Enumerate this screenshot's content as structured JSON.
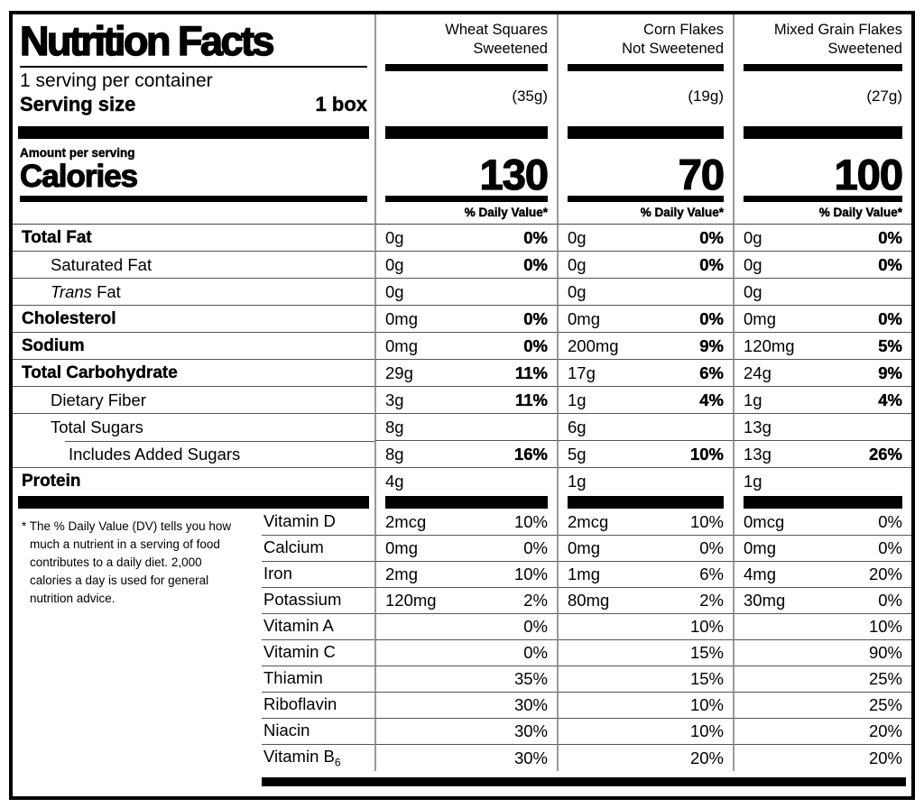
{
  "title": "Nutrition Facts",
  "serving_info": {
    "servings_per_container": "1 serving per container",
    "serving_size_label": "Serving size",
    "serving_size_value": "1 box"
  },
  "calories_section": {
    "amount_label": "Amount per serving",
    "calories_label": "Calories",
    "dv_header": "% Daily Value*"
  },
  "columns": [
    {
      "name_line1": "Wheat Squares",
      "name_line2": "Sweetened",
      "weight": "(35g)",
      "calories": "130"
    },
    {
      "name_line1": "Corn Flakes",
      "name_line2": "Not Sweetened",
      "weight": "(19g)",
      "calories": "70"
    },
    {
      "name_line1": "Mixed Grain Flakes",
      "name_line2": "Sweetened",
      "weight": "(27g)",
      "calories": "100"
    }
  ],
  "nutrient_rows": [
    {
      "pre": "",
      "label": "Total Fat",
      "cls": "bold",
      "cells": [
        {
          "amt": "0g",
          "pct": "0%"
        },
        {
          "amt": "0g",
          "pct": "0%"
        },
        {
          "amt": "0g",
          "pct": "0%"
        }
      ]
    },
    {
      "pre": "",
      "label": "Saturated Fat",
      "cls": "i1",
      "cells": [
        {
          "amt": "0g",
          "pct": "0%"
        },
        {
          "amt": "0g",
          "pct": "0%"
        },
        {
          "amt": "0g",
          "pct": "0%"
        }
      ]
    },
    {
      "pre": "Trans ",
      "label": "Fat",
      "cls": "i1",
      "cells": [
        {
          "amt": "0g",
          "pct": ""
        },
        {
          "amt": "0g",
          "pct": ""
        },
        {
          "amt": "0g",
          "pct": ""
        }
      ]
    },
    {
      "pre": "",
      "label": "Cholesterol",
      "cls": "bold",
      "cells": [
        {
          "amt": "0mg",
          "pct": "0%"
        },
        {
          "amt": "0mg",
          "pct": "0%"
        },
        {
          "amt": "0mg",
          "pct": "0%"
        }
      ]
    },
    {
      "pre": "",
      "label": "Sodium",
      "cls": "bold",
      "cells": [
        {
          "amt": "0mg",
          "pct": "0%"
        },
        {
          "amt": "200mg",
          "pct": "9%"
        },
        {
          "amt": "120mg",
          "pct": "5%"
        }
      ]
    },
    {
      "pre": "",
      "label": "Total Carbohydrate",
      "cls": "bold",
      "cells": [
        {
          "amt": "29g",
          "pct": "11%"
        },
        {
          "amt": "17g",
          "pct": "6%"
        },
        {
          "amt": "24g",
          "pct": "9%"
        }
      ]
    },
    {
      "pre": "",
      "label": "Dietary Fiber",
      "cls": "i1",
      "cells": [
        {
          "amt": "3g",
          "pct": "11%"
        },
        {
          "amt": "1g",
          "pct": "4%"
        },
        {
          "amt": "1g",
          "pct": "4%"
        }
      ]
    },
    {
      "pre": "",
      "label": "Total Sugars",
      "cls": "i1",
      "cells": [
        {
          "amt": "8g",
          "pct": ""
        },
        {
          "amt": "6g",
          "pct": ""
        },
        {
          "amt": "13g",
          "pct": ""
        }
      ]
    },
    {
      "pre": "",
      "label": "Includes Added Sugars",
      "cls": "i2",
      "cells": [
        {
          "amt": "8g",
          "pct": "16%"
        },
        {
          "amt": "5g",
          "pct": "10%"
        },
        {
          "amt": "13g",
          "pct": "26%"
        }
      ]
    },
    {
      "pre": "",
      "label": "Protein",
      "cls": "bold",
      "cells": [
        {
          "amt": "4g",
          "pct": ""
        },
        {
          "amt": "1g",
          "pct": ""
        },
        {
          "amt": "1g",
          "pct": ""
        }
      ]
    }
  ],
  "vitamin_rows": [
    {
      "label": "Vitamin D",
      "sub": "",
      "cells": [
        {
          "amt": "2mcg",
          "pct": "10%"
        },
        {
          "amt": "2mcg",
          "pct": "10%"
        },
        {
          "amt": "0mcg",
          "pct": "0%"
        }
      ]
    },
    {
      "label": "Calcium",
      "sub": "",
      "cells": [
        {
          "amt": "0mg",
          "pct": "0%"
        },
        {
          "amt": "0mg",
          "pct": "0%"
        },
        {
          "amt": "0mg",
          "pct": "0%"
        }
      ]
    },
    {
      "label": "Iron",
      "sub": "",
      "cells": [
        {
          "amt": "2mg",
          "pct": "10%"
        },
        {
          "amt": "1mg",
          "pct": "6%"
        },
        {
          "amt": "4mg",
          "pct": "20%"
        }
      ]
    },
    {
      "label": "Potassium",
      "sub": "",
      "cells": [
        {
          "amt": "120mg",
          "pct": "2%"
        },
        {
          "amt": "80mg",
          "pct": "2%"
        },
        {
          "amt": "30mg",
          "pct": "0%"
        }
      ]
    },
    {
      "label": "Vitamin A",
      "sub": "",
      "cells": [
        {
          "amt": "",
          "pct": "0%"
        },
        {
          "amt": "",
          "pct": "10%"
        },
        {
          "amt": "",
          "pct": "10%"
        }
      ]
    },
    {
      "label": "Vitamin C",
      "sub": "",
      "cells": [
        {
          "amt": "",
          "pct": "0%"
        },
        {
          "amt": "",
          "pct": "15%"
        },
        {
          "amt": "",
          "pct": "90%"
        }
      ]
    },
    {
      "label": "Thiamin",
      "sub": "",
      "cells": [
        {
          "amt": "",
          "pct": "35%"
        },
        {
          "amt": "",
          "pct": "15%"
        },
        {
          "amt": "",
          "pct": "25%"
        }
      ]
    },
    {
      "label": "Riboflavin",
      "sub": "",
      "cells": [
        {
          "amt": "",
          "pct": "30%"
        },
        {
          "amt": "",
          "pct": "10%"
        },
        {
          "amt": "",
          "pct": "25%"
        }
      ]
    },
    {
      "label": "Niacin",
      "sub": "",
      "cells": [
        {
          "amt": "",
          "pct": "30%"
        },
        {
          "amt": "",
          "pct": "10%"
        },
        {
          "amt": "",
          "pct": "20%"
        }
      ]
    },
    {
      "label": "Vitamin B",
      "sub": "6",
      "cells": [
        {
          "amt": "",
          "pct": "30%"
        },
        {
          "amt": "",
          "pct": "20%"
        },
        {
          "amt": "",
          "pct": "20%"
        }
      ]
    }
  ],
  "footnote": "* The % Daily Value (DV) tells you how much a nutrient in a serving of food contributes to a daily diet. 2,000 calories a day is used for general nutrition advice.",
  "colors": {
    "text": "#000000",
    "hairline": "#555555",
    "divider": "#9a9a9a"
  }
}
